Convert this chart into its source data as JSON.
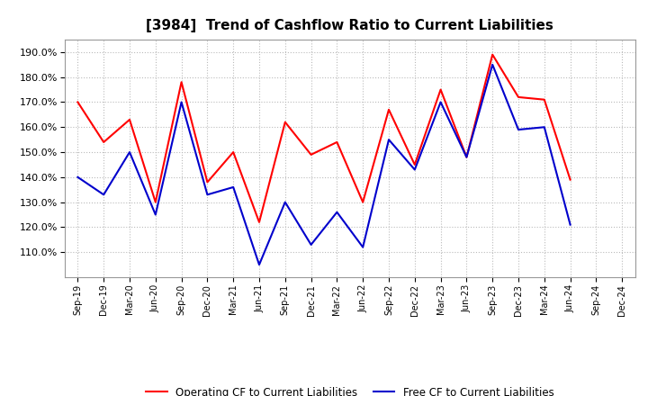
{
  "title": "[3984]  Trend of Cashflow Ratio to Current Liabilities",
  "x_labels": [
    "Sep-19",
    "Dec-19",
    "Mar-20",
    "Jun-20",
    "Sep-20",
    "Dec-20",
    "Mar-21",
    "Jun-21",
    "Sep-21",
    "Dec-21",
    "Mar-22",
    "Jun-22",
    "Sep-22",
    "Dec-22",
    "Mar-23",
    "Jun-23",
    "Sep-23",
    "Dec-23",
    "Mar-24",
    "Jun-24",
    "Sep-24",
    "Dec-24"
  ],
  "operating_cf": [
    170.0,
    154.0,
    163.0,
    130.0,
    178.0,
    138.0,
    150.0,
    122.0,
    162.0,
    149.0,
    154.0,
    130.0,
    167.0,
    145.0,
    175.0,
    148.0,
    189.0,
    172.0,
    171.0,
    139.0,
    null,
    null
  ],
  "free_cf": [
    140.0,
    133.0,
    150.0,
    125.0,
    170.0,
    133.0,
    136.0,
    105.0,
    130.0,
    113.0,
    126.0,
    112.0,
    155.0,
    143.0,
    170.0,
    148.0,
    185.0,
    159.0,
    160.0,
    121.0,
    null,
    null
  ],
  "ylim": [
    100.0,
    195.0
  ],
  "yticks": [
    110.0,
    120.0,
    130.0,
    140.0,
    150.0,
    160.0,
    170.0,
    180.0,
    190.0
  ],
  "operating_color": "#FF0000",
  "free_color": "#0000CC",
  "background_color": "#FFFFFF",
  "plot_bg_color": "#FFFFFF",
  "grid_color": "#BBBBBB",
  "title_fontsize": 11,
  "legend_labels": [
    "Operating CF to Current Liabilities",
    "Free CF to Current Liabilities"
  ]
}
